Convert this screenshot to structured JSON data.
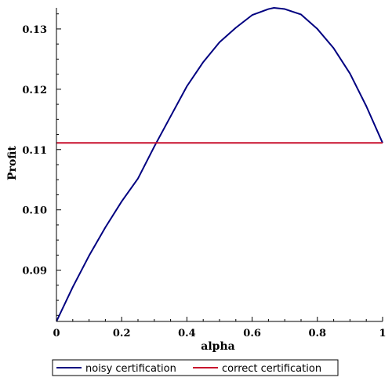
{
  "chart_data": {
    "type": "line",
    "xlabel": "alpha",
    "ylabel": "Profit",
    "xlim": [
      0,
      1
    ],
    "ylim": [
      0.0815,
      0.1335
    ],
    "x_ticks": [
      0,
      0.2,
      0.4,
      0.6,
      0.8,
      1
    ],
    "x_tick_labels": [
      "0",
      "0.2",
      "0.4",
      "0.6",
      "0.8",
      "1"
    ],
    "y_ticks": [
      0.09,
      0.1,
      0.11,
      0.12,
      0.13
    ],
    "y_tick_labels": [
      "0.09",
      "0.10",
      "0.11",
      "0.12",
      "0.13"
    ],
    "grid": false,
    "legend_placement": "bottom",
    "series": [
      {
        "name": "noisy certification",
        "color": "#000080",
        "x": [
          0,
          0.05,
          0.1,
          0.15,
          0.2,
          0.25,
          0.3,
          0.35,
          0.4,
          0.45,
          0.5,
          0.55,
          0.6,
          0.65,
          0.667,
          0.7,
          0.75,
          0.8,
          0.85,
          0.9,
          0.95,
          1
        ],
        "y": [
          0.0815,
          0.0872,
          0.0924,
          0.0971,
          0.1014,
          0.1052,
          0.1105,
          0.1155,
          0.1205,
          0.1245,
          0.1278,
          0.1302,
          0.1323,
          0.1333,
          0.1335,
          0.1333,
          0.1324,
          0.13,
          0.1268,
          0.1226,
          0.1172,
          0.1111
        ]
      },
      {
        "name": "correct certification",
        "color": "#c8102e",
        "x": [
          0,
          1
        ],
        "y": [
          0.1111,
          0.1111
        ]
      }
    ]
  }
}
